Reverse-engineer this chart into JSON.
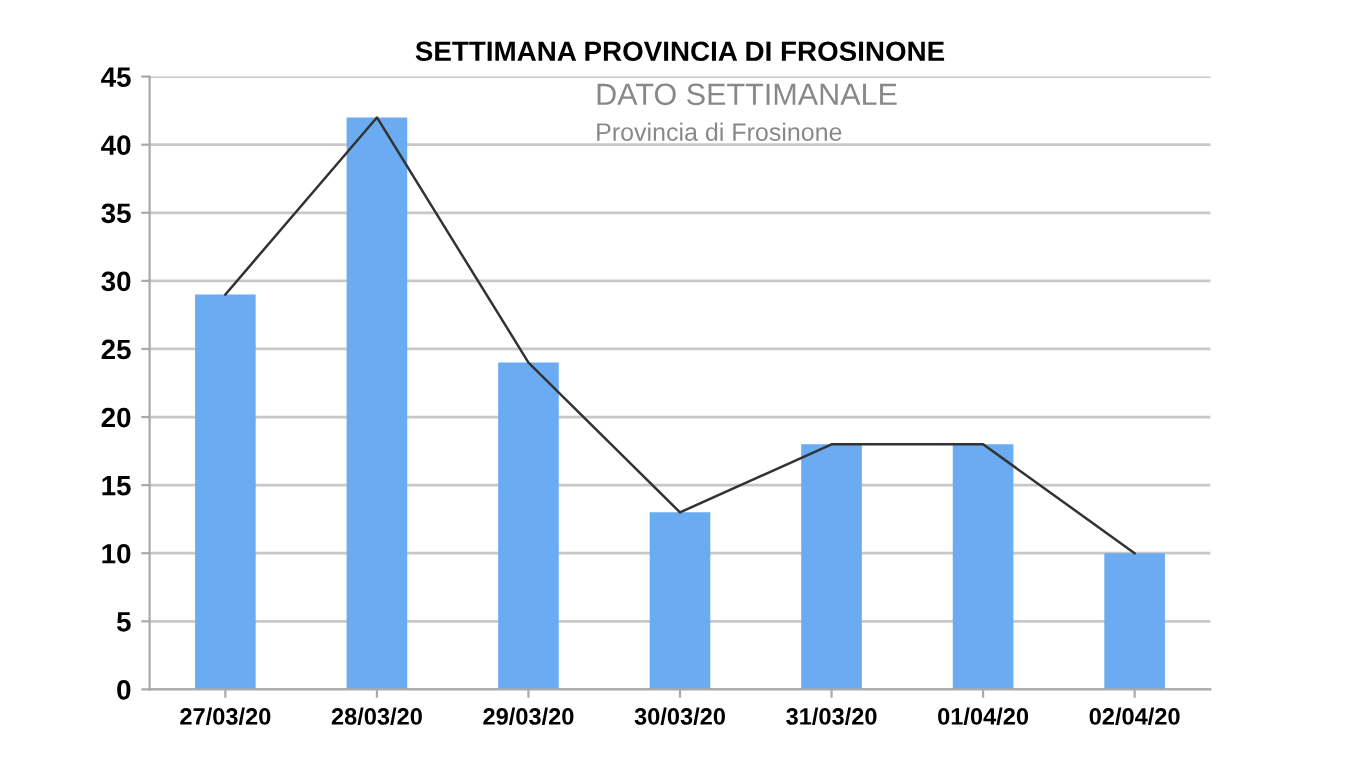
{
  "chart_data": {
    "type": "bar",
    "title": "SETTIMANA PROVINCIA DI FROSINONE",
    "categories": [
      "27/03/20",
      "28/03/20",
      "29/03/20",
      "30/03/20",
      "31/03/20",
      "01/04/20",
      "02/04/20"
    ],
    "series": [
      {
        "color": "#6aabf2",
        "values": [
          29,
          42,
          24,
          13,
          18,
          18,
          10
        ]
      },
      {
        "type": "line",
        "color": "#333333",
        "values": [
          29,
          42,
          24,
          13,
          18,
          18,
          10
        ]
      }
    ],
    "annotations": [
      "DATO SETTIMANALE",
      "Provincia di Frosinone"
    ],
    "ylim": [
      0,
      45
    ],
    "yticks": [
      0,
      5,
      10,
      15,
      20,
      25,
      30,
      35,
      40,
      45
    ],
    "grid": "y",
    "legend": false
  }
}
